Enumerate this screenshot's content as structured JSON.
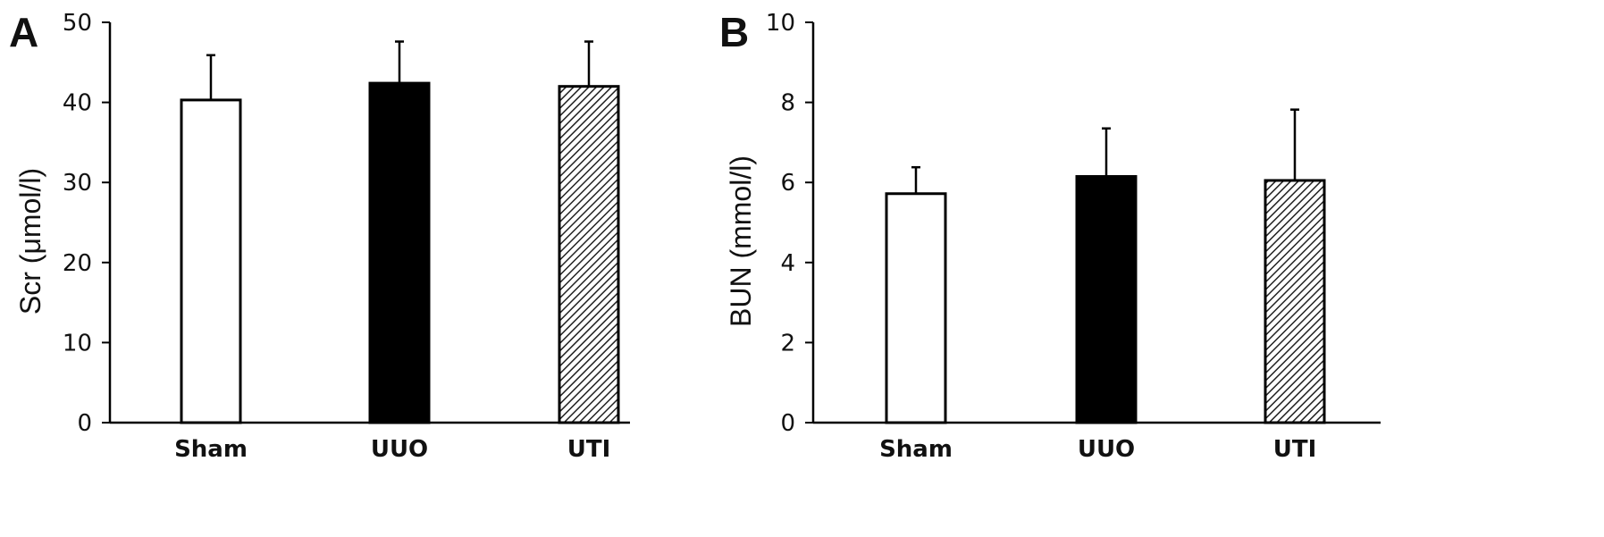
{
  "chart_data": [
    {
      "type": "bar",
      "panel": "A",
      "categories": [
        "Sham",
        "UUO",
        "UTI"
      ],
      "values": [
        40.3,
        42.4,
        42.0
      ],
      "error": [
        5.6,
        5.2,
        5.6
      ],
      "fills": [
        "white",
        "black",
        "hatched"
      ],
      "title": "",
      "xlabel": "",
      "ylabel": "Scr (μmol/l)",
      "ylim": [
        0,
        50
      ],
      "yticks": [
        0,
        10,
        20,
        30,
        40,
        50
      ],
      "grid": false
    },
    {
      "type": "bar",
      "panel": "B",
      "categories": [
        "Sham",
        "UUO",
        "UTI"
      ],
      "values": [
        5.72,
        6.15,
        6.05
      ],
      "error": [
        0.66,
        1.2,
        1.77
      ],
      "fills": [
        "white",
        "black",
        "hatched"
      ],
      "title": "",
      "xlabel": "",
      "ylabel": "BUN (mmol/l)",
      "ylim": [
        0,
        10
      ],
      "yticks": [
        0,
        2,
        4,
        6,
        8,
        10
      ],
      "grid": false
    }
  ],
  "colors": {
    "ink": "#000000",
    "white_bar": "#ffffff",
    "black_bar": "#000000",
    "hatch_background": "#ffffff"
  }
}
